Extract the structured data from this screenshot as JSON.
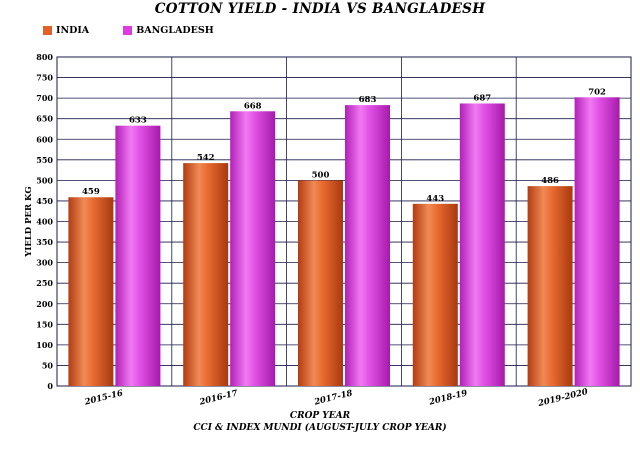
{
  "chart_data": {
    "type": "bar",
    "title": "COTTON YIELD - INDIA VS BANGLADESH",
    "xlabel": "CROP YEAR",
    "ylabel": "YIELD PER KG",
    "source": "CCI & INDEX MUNDI (AUGUST-JULY CROP YEAR)",
    "categories": [
      "2015-16",
      "2016-17",
      "2017-18",
      "2018-19",
      "2019-2020"
    ],
    "series": [
      {
        "name": "INDIA",
        "values": [
          459,
          542,
          500,
          443,
          486
        ],
        "color": "#e2602a"
      },
      {
        "name": "BANGLADESH",
        "values": [
          633,
          668,
          683,
          687,
          702
        ],
        "color": "#dd3ae0"
      }
    ],
    "ylim": [
      0,
      800
    ],
    "ytick_step": 50,
    "grid": true,
    "legend_position": "top-left",
    "data_labels": true
  }
}
